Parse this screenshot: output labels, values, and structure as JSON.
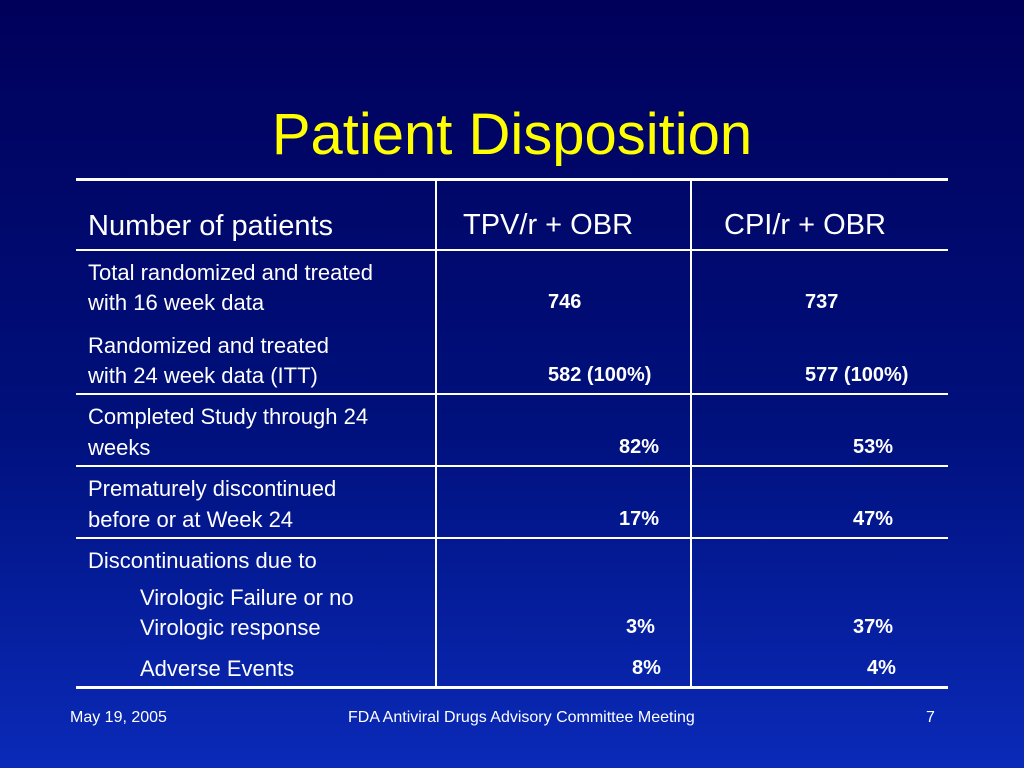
{
  "slide": {
    "title": "Patient Disposition",
    "footer": {
      "date": "May 19, 2005",
      "center": "FDA Antiviral Drugs Advisory Committee Meeting",
      "page": "7"
    }
  },
  "table": {
    "headers": [
      "Number of patients",
      "TPV/r + OBR",
      "CPI/r + OBR"
    ],
    "rows": [
      {
        "label": [
          "Total randomized and treated",
          "with 16 week data"
        ],
        "tpv": "746",
        "cpi": "737"
      },
      {
        "label": [
          "Randomized and treated",
          "with 24 week data (ITT)"
        ],
        "tpv": "582 (100%)",
        "cpi": "577 (100%)"
      },
      {
        "label": [
          "Completed Study through 24",
          "weeks"
        ],
        "tpv": "82%",
        "cpi": "53%"
      },
      {
        "label": [
          "Prematurely discontinued",
          "before or at Week 24"
        ],
        "tpv": "17%",
        "cpi": "47%"
      },
      {
        "label": [
          "Discontinuations due to"
        ]
      },
      {
        "label": [
          "Virologic Failure or no",
          "Virologic response"
        ],
        "tpv": "3%",
        "cpi": "37%"
      },
      {
        "label": [
          "Adverse Events"
        ],
        "tpv": "8%",
        "cpi": "4%"
      }
    ]
  },
  "colors": {
    "background_top": "#00005a",
    "background_bottom": "#0a2ab8",
    "title": "#ffff00",
    "text": "#ffffff"
  }
}
